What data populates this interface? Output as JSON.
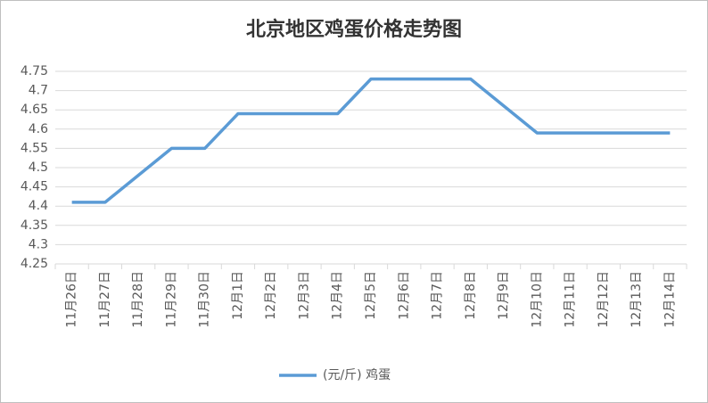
{
  "chart_data": {
    "type": "line",
    "title": "北京地区鸡蛋价格走势图",
    "categories": [
      "11月26日",
      "11月27日",
      "11月28日",
      "11月29日",
      "11月30日",
      "12月1日",
      "12月2日",
      "12月3日",
      "12月4日",
      "12月5日",
      "12月6日",
      "12月7日",
      "12月8日",
      "12月9日",
      "12月10日",
      "12月11日",
      "12月12日",
      "12月13日",
      "12月14日"
    ],
    "series": [
      {
        "name": "(元/斤) 鸡蛋",
        "color": "#5b9bd5",
        "values": [
          4.41,
          4.41,
          4.48,
          4.55,
          4.55,
          4.64,
          4.64,
          4.64,
          4.64,
          4.73,
          4.73,
          4.73,
          4.73,
          4.66,
          4.59,
          4.59,
          4.59,
          4.59,
          4.59
        ]
      }
    ],
    "ylim": [
      4.25,
      4.75
    ],
    "yticks": [
      4.25,
      4.3,
      4.35,
      4.4,
      4.45,
      4.5,
      4.55,
      4.6,
      4.65,
      4.7,
      4.75
    ],
    "grid": true,
    "legend": "bottom"
  }
}
